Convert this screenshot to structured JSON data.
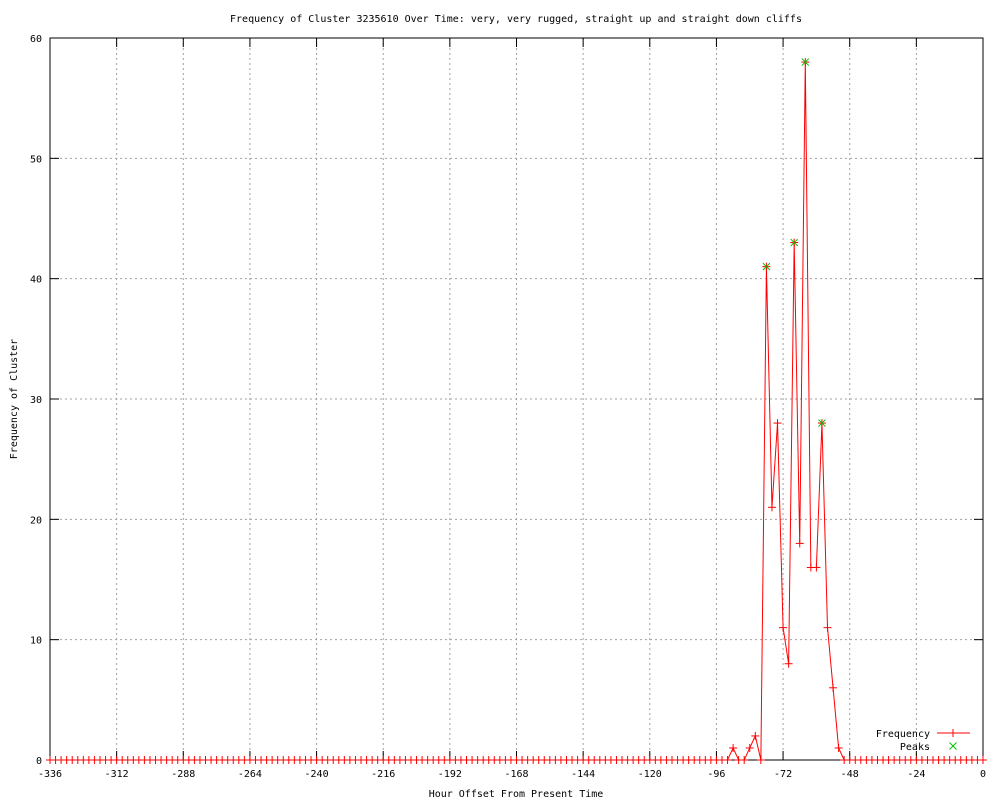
{
  "chart_data": {
    "type": "line",
    "title": "Frequency of Cluster 3235610 Over Time: very, very rugged, straight up and straight down cliffs",
    "xlabel": "Hour Offset From Present Time",
    "ylabel": "Frequency of Cluster",
    "xlim": [
      -336,
      0
    ],
    "ylim": [
      0,
      60
    ],
    "xticks": [
      -336,
      -312,
      -288,
      -264,
      -240,
      -216,
      -192,
      -168,
      -144,
      -120,
      -96,
      -72,
      -48,
      -24,
      0
    ],
    "yticks": [
      0,
      10,
      20,
      30,
      40,
      50,
      60
    ],
    "grid": true,
    "legend_position": "bottom-right",
    "series": [
      {
        "name": "Frequency",
        "color": "#ff0000",
        "marker": "plus",
        "x": [
          -336,
          -334,
          -332,
          -330,
          -328,
          -326,
          -324,
          -322,
          -320,
          -318,
          -316,
          -314,
          -312,
          -310,
          -308,
          -306,
          -304,
          -302,
          -300,
          -298,
          -296,
          -294,
          -292,
          -290,
          -288,
          -286,
          -284,
          -282,
          -280,
          -278,
          -276,
          -274,
          -272,
          -270,
          -268,
          -266,
          -264,
          -262,
          -260,
          -258,
          -256,
          -254,
          -252,
          -250,
          -248,
          -246,
          -244,
          -242,
          -240,
          -238,
          -236,
          -234,
          -232,
          -230,
          -228,
          -226,
          -224,
          -222,
          -220,
          -218,
          -216,
          -214,
          -212,
          -210,
          -208,
          -206,
          -204,
          -202,
          -200,
          -198,
          -196,
          -194,
          -192,
          -190,
          -188,
          -186,
          -184,
          -182,
          -180,
          -178,
          -176,
          -174,
          -172,
          -170,
          -168,
          -166,
          -164,
          -162,
          -160,
          -158,
          -156,
          -154,
          -152,
          -150,
          -148,
          -146,
          -144,
          -142,
          -140,
          -138,
          -136,
          -134,
          -132,
          -130,
          -128,
          -126,
          -124,
          -122,
          -120,
          -118,
          -116,
          -114,
          -112,
          -110,
          -108,
          -106,
          -104,
          -102,
          -100,
          -98,
          -96,
          -94,
          -92,
          -90,
          -88,
          -86,
          -84,
          -82,
          -80,
          -78,
          -76,
          -74,
          -72,
          -70,
          -68,
          -66,
          -64,
          -62,
          -60,
          -58,
          -56,
          -54,
          -52,
          -50,
          -48,
          -46,
          -44,
          -42,
          -40,
          -38,
          -36,
          -34,
          -32,
          -30,
          -28,
          -26,
          -24,
          -22,
          -20,
          -18,
          -16,
          -14,
          -12,
          -10,
          -8,
          -6,
          -4,
          -2,
          0
        ],
        "y": [
          0,
          0,
          0,
          0,
          0,
          0,
          0,
          0,
          0,
          0,
          0,
          0,
          0,
          0,
          0,
          0,
          0,
          0,
          0,
          0,
          0,
          0,
          0,
          0,
          0,
          0,
          0,
          0,
          0,
          0,
          0,
          0,
          0,
          0,
          0,
          0,
          0,
          0,
          0,
          0,
          0,
          0,
          0,
          0,
          0,
          0,
          0,
          0,
          0,
          0,
          0,
          0,
          0,
          0,
          0,
          0,
          0,
          0,
          0,
          0,
          0,
          0,
          0,
          0,
          0,
          0,
          0,
          0,
          0,
          0,
          0,
          0,
          0,
          0,
          0,
          0,
          0,
          0,
          0,
          0,
          0,
          0,
          0,
          0,
          0,
          0,
          0,
          0,
          0,
          0,
          0,
          0,
          0,
          0,
          0,
          0,
          0,
          0,
          0,
          0,
          0,
          0,
          0,
          0,
          0,
          0,
          0,
          0,
          0,
          0,
          0,
          0,
          0,
          0,
          0,
          0,
          0,
          0,
          0,
          0,
          0,
          0,
          0,
          1,
          0,
          0,
          1,
          2,
          0,
          41,
          21,
          28,
          11,
          8,
          43,
          18,
          58,
          16,
          16,
          28,
          11,
          6,
          1,
          0,
          0,
          0,
          0,
          0,
          0,
          0,
          0,
          0,
          0,
          0,
          0,
          0,
          0,
          0,
          0,
          0,
          0,
          0,
          0,
          0,
          0,
          0,
          0,
          0,
          0
        ]
      },
      {
        "name": "Peaks",
        "color": "#00c000",
        "marker": "cross",
        "x": [
          -78,
          -68,
          -64,
          -58
        ],
        "y": [
          41,
          43,
          58,
          28
        ]
      }
    ]
  }
}
